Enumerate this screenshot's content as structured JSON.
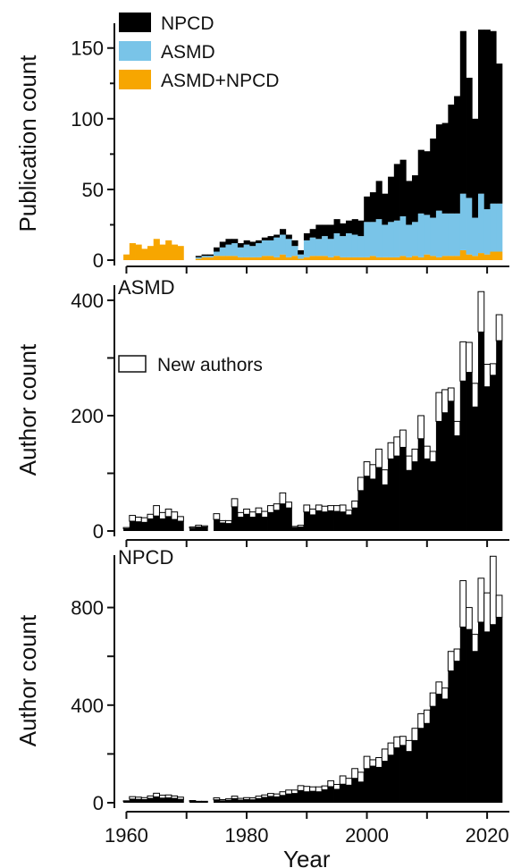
{
  "chart_data": [
    {
      "type": "bar",
      "stacked": true,
      "panel_label": "",
      "xlabel": "",
      "ylabel": "Publication count",
      "xlim": [
        1958,
        2024
      ],
      "ylim": [
        0,
        165
      ],
      "yticks": [
        0,
        50,
        100,
        150
      ],
      "legend_position": "top-left",
      "colors": {
        "NPCD": "#000000",
        "ASMD": "#79c4e8",
        "ASMD+NPCD": "#f7a600"
      },
      "x": [
        1960,
        1961,
        1962,
        1963,
        1964,
        1965,
        1966,
        1967,
        1968,
        1969,
        1970,
        1971,
        1972,
        1973,
        1974,
        1975,
        1976,
        1977,
        1978,
        1979,
        1980,
        1981,
        1982,
        1983,
        1984,
        1985,
        1986,
        1987,
        1988,
        1989,
        1990,
        1991,
        1992,
        1993,
        1994,
        1995,
        1996,
        1997,
        1998,
        1999,
        2000,
        2001,
        2002,
        2003,
        2004,
        2005,
        2006,
        2007,
        2008,
        2009,
        2010,
        2011,
        2012,
        2013,
        2014,
        2015,
        2016,
        2017,
        2018,
        2019,
        2020,
        2021,
        2022
      ],
      "series": [
        {
          "name": "ASMD+NPCD",
          "values": [
            4,
            12,
            11,
            8,
            10,
            15,
            11,
            14,
            11,
            10,
            0,
            0,
            1,
            2,
            2,
            3,
            3,
            3,
            3,
            2,
            2,
            2,
            2,
            3,
            3,
            2,
            4,
            2,
            3,
            1,
            2,
            3,
            3,
            3,
            2,
            3,
            2,
            2,
            2,
            2,
            2,
            3,
            2,
            2,
            2,
            2,
            3,
            2,
            3,
            2,
            4,
            3,
            2,
            3,
            3,
            3,
            7,
            4,
            3,
            5,
            4,
            6,
            6
          ]
        },
        {
          "name": "ASMD",
          "values": [
            0,
            0,
            0,
            0,
            0,
            0,
            0,
            0,
            0,
            0,
            0,
            0,
            1,
            1,
            1,
            3,
            6,
            8,
            9,
            7,
            9,
            8,
            10,
            11,
            11,
            14,
            14,
            13,
            7,
            3,
            12,
            13,
            12,
            14,
            13,
            16,
            15,
            17,
            16,
            15,
            25,
            24,
            27,
            23,
            25,
            26,
            28,
            23,
            24,
            31,
            28,
            27,
            33,
            30,
            30,
            30,
            40,
            40,
            27,
            42,
            32,
            34,
            34
          ]
        },
        {
          "name": "NPCD",
          "values": [
            0,
            0,
            0,
            0,
            0,
            0,
            0,
            0,
            0,
            0,
            0,
            0,
            1,
            1,
            1,
            3,
            4,
            4,
            3,
            3,
            3,
            3,
            2,
            2,
            3,
            2,
            4,
            3,
            4,
            3,
            5,
            6,
            10,
            8,
            10,
            10,
            9,
            9,
            11,
            11,
            18,
            21,
            27,
            22,
            32,
            40,
            40,
            31,
            33,
            45,
            45,
            56,
            61,
            64,
            77,
            83,
            115,
            85,
            70,
            116,
            127,
            122,
            99
          ]
        }
      ]
    },
    {
      "type": "bar",
      "stacked": true,
      "panel_label": "ASMD",
      "xlabel": "",
      "ylabel": "Author count",
      "xlim": [
        1958,
        2024
      ],
      "ylim": [
        0,
        420
      ],
      "yticks": [
        0,
        200,
        400
      ],
      "legend_position": "upper-left",
      "legend": [
        {
          "label": "New authors",
          "swatch": "outline"
        }
      ],
      "x": [
        1960,
        1961,
        1962,
        1963,
        1964,
        1965,
        1966,
        1967,
        1968,
        1969,
        1970,
        1971,
        1972,
        1973,
        1974,
        1975,
        1976,
        1977,
        1978,
        1979,
        1980,
        1981,
        1982,
        1983,
        1984,
        1985,
        1986,
        1987,
        1988,
        1989,
        1990,
        1991,
        1992,
        1993,
        1994,
        1995,
        1996,
        1997,
        1998,
        1999,
        2000,
        2001,
        2002,
        2003,
        2004,
        2005,
        2006,
        2007,
        2008,
        2009,
        2010,
        2011,
        2012,
        2013,
        2014,
        2015,
        2016,
        2017,
        2018,
        2019,
        2020,
        2021,
        2022
      ],
      "series": [
        {
          "name": "",
          "values": [
            4,
            17,
            16,
            15,
            21,
            26,
            21,
            25,
            20,
            17,
            0,
            5,
            7,
            7,
            0,
            20,
            14,
            13,
            42,
            24,
            29,
            24,
            30,
            24,
            32,
            36,
            47,
            40,
            6,
            7,
            33,
            28,
            35,
            33,
            35,
            34,
            33,
            28,
            40,
            70,
            95,
            90,
            110,
            80,
            125,
            130,
            145,
            105,
            120,
            160,
            125,
            120,
            190,
            205,
            225,
            165,
            260,
            275,
            215,
            345,
            250,
            270,
            330
          ]
        },
        {
          "name": "New authors",
          "values": [
            2,
            10,
            8,
            8,
            8,
            18,
            11,
            13,
            13,
            8,
            0,
            2,
            3,
            2,
            0,
            10,
            4,
            5,
            14,
            8,
            9,
            9,
            10,
            10,
            12,
            11,
            19,
            10,
            2,
            3,
            12,
            10,
            10,
            10,
            9,
            10,
            12,
            8,
            12,
            23,
            25,
            25,
            32,
            26,
            28,
            33,
            30,
            25,
            22,
            40,
            22,
            18,
            50,
            40,
            23,
            25,
            68,
            52,
            41,
            70,
            39,
            20,
            45
          ]
        }
      ]
    },
    {
      "type": "bar",
      "stacked": true,
      "panel_label": "NPCD",
      "xlabel": "Year",
      "ylabel": "Author count",
      "xlim": [
        1958,
        2024
      ],
      "ylim": [
        0,
        1000
      ],
      "yticks": [
        0,
        400,
        800
      ],
      "x": [
        1960,
        1961,
        1962,
        1963,
        1964,
        1965,
        1966,
        1967,
        1968,
        1969,
        1970,
        1971,
        1972,
        1973,
        1974,
        1975,
        1976,
        1977,
        1978,
        1979,
        1980,
        1981,
        1982,
        1983,
        1984,
        1985,
        1986,
        1987,
        1988,
        1989,
        1990,
        1991,
        1992,
        1993,
        1994,
        1995,
        1996,
        1997,
        1998,
        1999,
        2000,
        2001,
        2002,
        2003,
        2004,
        2005,
        2006,
        2007,
        2008,
        2009,
        2010,
        2011,
        2012,
        2013,
        2014,
        2015,
        2016,
        2017,
        2018,
        2019,
        2020,
        2021,
        2022
      ],
      "series": [
        {
          "name": "",
          "values": [
            5,
            15,
            14,
            13,
            18,
            24,
            19,
            20,
            18,
            14,
            0,
            6,
            4,
            4,
            0,
            12,
            8,
            10,
            17,
            11,
            13,
            12,
            17,
            22,
            26,
            24,
            30,
            36,
            38,
            50,
            45,
            47,
            45,
            53,
            66,
            55,
            76,
            72,
            100,
            85,
            140,
            150,
            145,
            170,
            195,
            225,
            235,
            210,
            255,
            305,
            325,
            395,
            445,
            425,
            540,
            580,
            720,
            710,
            620,
            740,
            700,
            730,
            760
          ]
        },
        {
          "name": "New authors",
          "values": [
            3,
            10,
            9,
            8,
            10,
            15,
            12,
            12,
            10,
            9,
            0,
            3,
            2,
            2,
            0,
            8,
            5,
            6,
            10,
            7,
            8,
            8,
            10,
            10,
            12,
            12,
            15,
            16,
            14,
            20,
            22,
            18,
            20,
            16,
            24,
            20,
            34,
            28,
            40,
            40,
            50,
            26,
            40,
            50,
            50,
            45,
            37,
            45,
            50,
            60,
            55,
            55,
            50,
            45,
            80,
            50,
            190,
            90,
            70,
            180,
            160,
            280,
            90
          ]
        }
      ]
    }
  ]
}
